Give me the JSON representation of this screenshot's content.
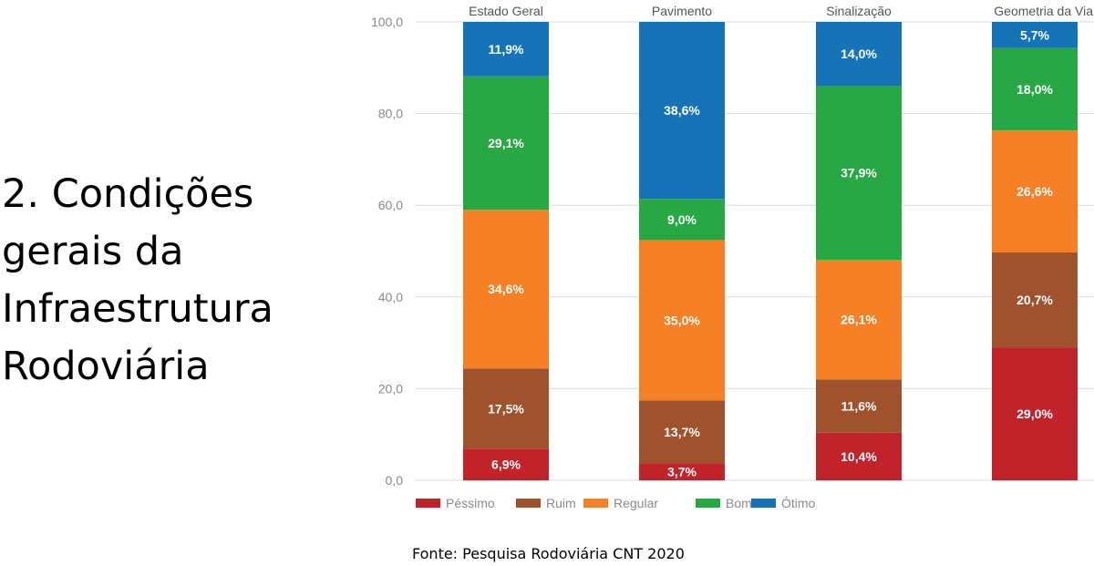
{
  "slide": {
    "title_lines": [
      "2. Condições",
      "gerais da",
      "Infraestrutura",
      "Rodoviária"
    ],
    "source": "Fonte: Pesquisa Rodoviária CNT 2020"
  },
  "chart_data": {
    "type": "bar",
    "stacked": true,
    "title": "",
    "xlabel": "",
    "ylabel": "",
    "ylim": [
      0,
      100
    ],
    "yticks": [
      "0,0",
      "20,0",
      "40,0",
      "60,0",
      "80,0",
      "100,0"
    ],
    "categories": [
      "Estado Geral",
      "Pavimento",
      "Sinalização",
      "Geometria da Via"
    ],
    "series": [
      {
        "name": "Péssimo",
        "color": "#c1232b",
        "values": [
          6.9,
          3.7,
          10.4,
          29.0
        ],
        "labels": [
          "6,9%",
          "3,7%",
          "10,4%",
          "29,0%"
        ]
      },
      {
        "name": "Ruim",
        "color": "#a0522d",
        "values": [
          17.5,
          13.7,
          11.6,
          20.7
        ],
        "labels": [
          "17,5%",
          "13,7%",
          "11,6%",
          "20,7%"
        ]
      },
      {
        "name": "Regular",
        "color": "#f58025",
        "values": [
          34.6,
          35.0,
          26.1,
          26.6
        ],
        "labels": [
          "34,6%",
          "35,0%",
          "26,1%",
          "26,6%"
        ]
      },
      {
        "name": "Bom",
        "color": "#27a844",
        "values": [
          29.1,
          9.0,
          37.9,
          18.0
        ],
        "labels": [
          "29,1%",
          "9,0%",
          "37,9%",
          "18,0%"
        ]
      },
      {
        "name": "Ótimo",
        "color": "#1673b5",
        "values": [
          11.9,
          38.6,
          14.0,
          5.7
        ],
        "labels": [
          "11,9%",
          "38,6%",
          "14,0%",
          "5,7%"
        ]
      }
    ],
    "legend_position": "bottom-left"
  }
}
